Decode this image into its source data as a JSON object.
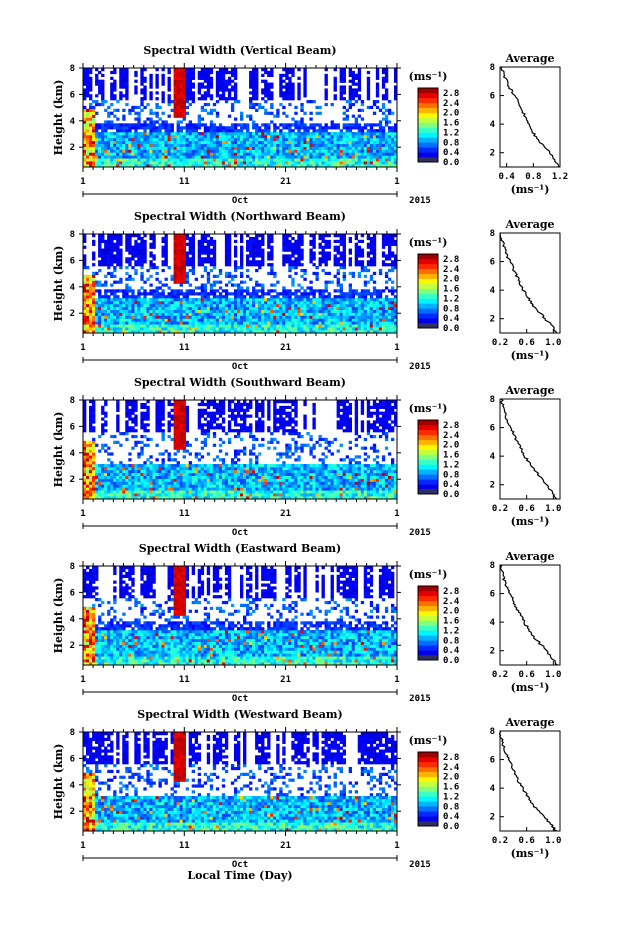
{
  "figure": {
    "bottom_xlabel": "Local Time (Day)",
    "colorbar_unit_label": "(ms⁻¹)"
  },
  "chart_data": [
    {
      "type": "heatmap",
      "title": "Spectral Width (Vertical Beam)",
      "ylabel": "Height (km)",
      "ylim": [
        0.5,
        8
      ],
      "yticks": [
        "2",
        "4",
        "6",
        "8"
      ],
      "xlim": [
        1,
        32
      ],
      "xticks": [
        "1",
        "11",
        "21",
        "1"
      ],
      "month_label": "Oct",
      "year_label": "2015",
      "colorbar_ticks": [
        "0.0",
        "0.4",
        "0.8",
        "1.2",
        "1.6",
        "2.0",
        "2.4",
        "2.8"
      ],
      "colorbar_range": [
        0,
        3
      ],
      "profile": {
        "title": "Average",
        "xlabel": "(ms⁻¹)",
        "xticks": [
          "0.4",
          "0.8",
          "1.2"
        ],
        "xlim": [
          0.3,
          1.2
        ],
        "ylim": [
          1,
          8
        ],
        "yticks": [
          "2",
          "4",
          "6",
          "8"
        ],
        "points": [
          [
            1.18,
            1.0
          ],
          [
            1.12,
            1.5
          ],
          [
            1.05,
            2.0
          ],
          [
            0.95,
            2.5
          ],
          [
            0.85,
            3.0
          ],
          [
            0.78,
            3.5
          ],
          [
            0.72,
            4.0
          ],
          [
            0.68,
            4.5
          ],
          [
            0.63,
            5.0
          ],
          [
            0.58,
            5.5
          ],
          [
            0.52,
            6.0
          ],
          [
            0.45,
            6.5
          ],
          [
            0.4,
            7.0
          ],
          [
            0.35,
            7.5
          ],
          [
            0.32,
            8.0
          ]
        ]
      }
    },
    {
      "type": "heatmap",
      "title": "Spectral Width (Northward Beam)",
      "ylabel": "Height (km)",
      "ylim": [
        0.5,
        8
      ],
      "yticks": [
        "2",
        "4",
        "6",
        "8"
      ],
      "xlim": [
        1,
        32
      ],
      "xticks": [
        "1",
        "11",
        "21",
        "1"
      ],
      "month_label": "Oct",
      "year_label": "2015",
      "colorbar_ticks": [
        "0.0",
        "0.4",
        "0.8",
        "1.2",
        "1.6",
        "2.0",
        "2.4",
        "2.8"
      ],
      "colorbar_range": [
        0,
        3
      ],
      "profile": {
        "title": "Average",
        "xlabel": "(ms⁻¹)",
        "xticks": [
          "0.2",
          "0.6",
          "1.0"
        ],
        "xlim": [
          0.2,
          1.1
        ],
        "ylim": [
          1,
          8
        ],
        "yticks": [
          "2",
          "4",
          "6",
          "8"
        ],
        "points": [
          [
            1.05,
            1.0
          ],
          [
            0.98,
            1.5
          ],
          [
            0.88,
            2.0
          ],
          [
            0.78,
            2.5
          ],
          [
            0.68,
            3.0
          ],
          [
            0.62,
            3.5
          ],
          [
            0.55,
            4.0
          ],
          [
            0.5,
            4.5
          ],
          [
            0.45,
            5.0
          ],
          [
            0.4,
            5.5
          ],
          [
            0.35,
            6.0
          ],
          [
            0.3,
            6.5
          ],
          [
            0.26,
            7.0
          ],
          [
            0.23,
            7.5
          ],
          [
            0.21,
            8.0
          ]
        ]
      }
    },
    {
      "type": "heatmap",
      "title": "Spectral Width (Southward Beam)",
      "ylabel": "Height (km)",
      "ylim": [
        0.5,
        8
      ],
      "yticks": [
        "2",
        "4",
        "6",
        "8"
      ],
      "xlim": [
        1,
        32
      ],
      "xticks": [
        "1",
        "11",
        "21",
        "1"
      ],
      "month_label": "Oct",
      "year_label": "2015",
      "colorbar_ticks": [
        "0.0",
        "0.4",
        "0.8",
        "1.2",
        "1.6",
        "2.0",
        "2.4",
        "2.8"
      ],
      "colorbar_range": [
        0,
        3
      ],
      "profile": {
        "title": "Average",
        "xlabel": "(ms⁻¹)",
        "xticks": [
          "0.2",
          "0.6",
          "1.0"
        ],
        "xlim": [
          0.2,
          1.1
        ],
        "ylim": [
          1,
          8
        ],
        "yticks": [
          "2",
          "4",
          "6",
          "8"
        ],
        "points": [
          [
            1.05,
            1.0
          ],
          [
            0.97,
            1.5
          ],
          [
            0.9,
            2.0
          ],
          [
            0.82,
            2.5
          ],
          [
            0.72,
            3.0
          ],
          [
            0.64,
            3.5
          ],
          [
            0.57,
            4.0
          ],
          [
            0.52,
            4.5
          ],
          [
            0.46,
            5.0
          ],
          [
            0.41,
            5.5
          ],
          [
            0.36,
            6.0
          ],
          [
            0.31,
            6.5
          ],
          [
            0.27,
            7.0
          ],
          [
            0.24,
            7.5
          ],
          [
            0.22,
            8.0
          ]
        ]
      }
    },
    {
      "type": "heatmap",
      "title": "Spectral Width (Eastward Beam)",
      "ylabel": "Height (km)",
      "ylim": [
        0.5,
        8
      ],
      "yticks": [
        "2",
        "4",
        "6",
        "8"
      ],
      "xlim": [
        1,
        32
      ],
      "xticks": [
        "1",
        "11",
        "21",
        "1"
      ],
      "month_label": "Oct",
      "year_label": "2015",
      "colorbar_ticks": [
        "0.0",
        "0.4",
        "0.8",
        "1.2",
        "1.6",
        "2.0",
        "2.4",
        "2.8"
      ],
      "colorbar_range": [
        0,
        3
      ],
      "profile": {
        "title": "Average",
        "xlabel": "(ms⁻¹)",
        "xticks": [
          "0.2",
          "0.6",
          "1.0"
        ],
        "xlim": [
          0.2,
          1.1
        ],
        "ylim": [
          1,
          8
        ],
        "yticks": [
          "2",
          "4",
          "6",
          "8"
        ],
        "points": [
          [
            1.06,
            1.0
          ],
          [
            0.98,
            1.5
          ],
          [
            0.9,
            2.0
          ],
          [
            0.8,
            2.5
          ],
          [
            0.7,
            3.0
          ],
          [
            0.63,
            3.5
          ],
          [
            0.56,
            4.0
          ],
          [
            0.51,
            4.5
          ],
          [
            0.45,
            5.0
          ],
          [
            0.4,
            5.5
          ],
          [
            0.35,
            6.0
          ],
          [
            0.3,
            6.5
          ],
          [
            0.26,
            7.0
          ],
          [
            0.23,
            7.5
          ],
          [
            0.21,
            8.0
          ]
        ]
      }
    },
    {
      "type": "heatmap",
      "title": "Spectral Width (Westward Beam)",
      "ylabel": "Height (km)",
      "ylim": [
        0.5,
        8
      ],
      "yticks": [
        "2",
        "4",
        "6",
        "8"
      ],
      "xlim": [
        1,
        32
      ],
      "xticks": [
        "1",
        "11",
        "21",
        "1"
      ],
      "month_label": "Oct",
      "year_label": "2015",
      "colorbar_ticks": [
        "0.0",
        "0.4",
        "0.8",
        "1.2",
        "1.6",
        "2.0",
        "2.4",
        "2.8"
      ],
      "colorbar_range": [
        0,
        3
      ],
      "profile": {
        "title": "Average",
        "xlabel": "(ms⁻¹)",
        "xticks": [
          "0.2",
          "0.6",
          "1.0"
        ],
        "xlim": [
          0.2,
          1.1
        ],
        "ylim": [
          1,
          8
        ],
        "yticks": [
          "2",
          "4",
          "6",
          "8"
        ],
        "points": [
          [
            1.05,
            1.0
          ],
          [
            0.96,
            1.5
          ],
          [
            0.86,
            2.0
          ],
          [
            0.76,
            2.5
          ],
          [
            0.67,
            3.0
          ],
          [
            0.6,
            3.5
          ],
          [
            0.54,
            4.0
          ],
          [
            0.48,
            4.5
          ],
          [
            0.43,
            5.0
          ],
          [
            0.38,
            5.5
          ],
          [
            0.33,
            6.0
          ],
          [
            0.29,
            6.5
          ],
          [
            0.25,
            7.0
          ],
          [
            0.22,
            7.5
          ],
          [
            0.2,
            8.0
          ]
        ]
      }
    }
  ]
}
